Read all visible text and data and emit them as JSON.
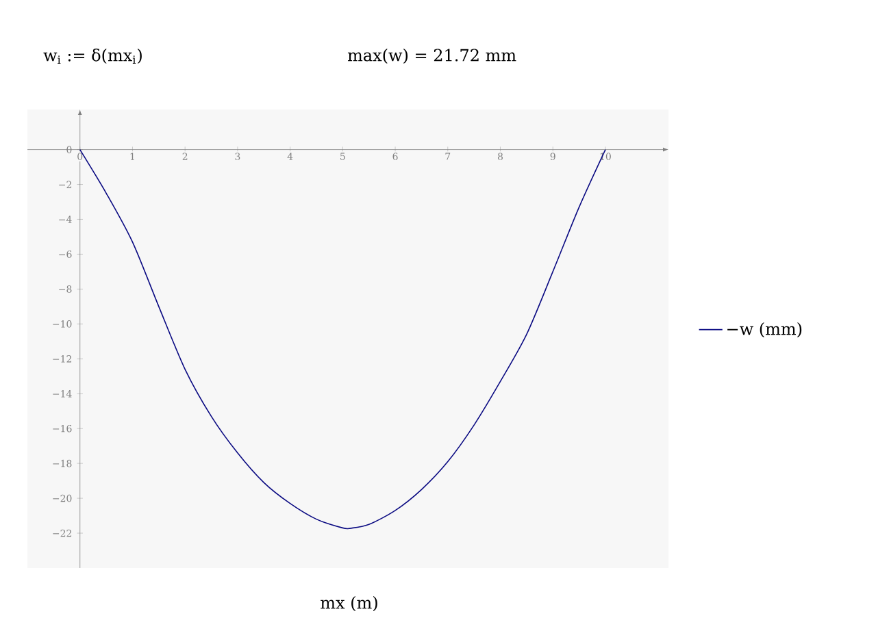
{
  "chart_data": {
    "type": "line",
    "annotations": [
      "w$_{i}$ := δ(mx$_{i}$)",
      "max(w) = 21.72 mm"
    ],
    "xlabel": "mx (m)",
    "x": [
      0,
      0.5,
      1,
      1.5,
      2,
      2.5,
      3,
      3.5,
      4,
      4.5,
      5,
      5.15,
      5.5,
      6,
      6.5,
      7,
      7.5,
      8,
      8.5,
      9,
      9.5,
      10
    ],
    "series": [
      {
        "name": "−w (mm)",
        "color": "#0a0a82",
        "values": [
          0,
          -2.5,
          -5.3,
          -9.0,
          -12.6,
          -15.3,
          -17.4,
          -19.1,
          -20.3,
          -21.2,
          -21.7,
          -21.72,
          -21.5,
          -20.7,
          -19.5,
          -17.9,
          -15.8,
          -13.3,
          -10.6,
          -7.0,
          -3.3,
          0
        ]
      }
    ],
    "xlim": [
      -1,
      11.2
    ],
    "ylim": [
      -24,
      2.3
    ],
    "xticks": [
      0,
      1,
      2,
      3,
      4,
      5,
      6,
      7,
      8,
      9,
      10
    ],
    "yticks": [
      0,
      {
        "value": -2,
        "label": "−2"
      },
      {
        "value": -4,
        "label": "−4"
      },
      {
        "value": -6,
        "label": "−6"
      },
      {
        "value": -8,
        "label": "−8"
      },
      {
        "value": -10,
        "label": "−10"
      },
      {
        "value": -12,
        "label": "−12"
      },
      {
        "value": -14,
        "label": "−14"
      },
      {
        "value": -16,
        "label": "−16"
      },
      {
        "value": -18,
        "label": "−18"
      },
      {
        "value": -20,
        "label": "−20"
      },
      {
        "value": -22,
        "label": "−22"
      }
    ],
    "legend": "right",
    "marker": "none",
    "line_style": "solid"
  }
}
